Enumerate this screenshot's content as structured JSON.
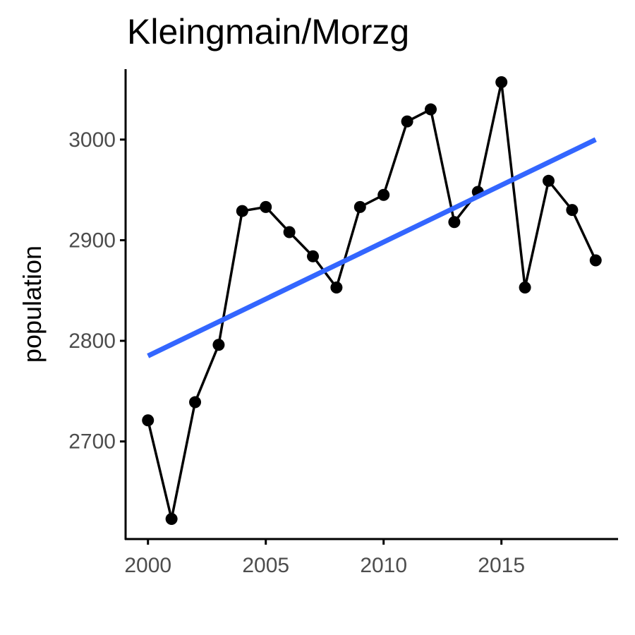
{
  "chart_data": {
    "type": "line",
    "title": "Kleingmain/Morzg",
    "xlabel": "",
    "ylabel": "population",
    "xlim": [
      1999.05,
      2019.95
    ],
    "ylim": [
      2603,
      3070
    ],
    "x_ticks": [
      2000,
      2005,
      2010,
      2015
    ],
    "y_ticks": [
      2700,
      2800,
      2900,
      3000
    ],
    "grid": false,
    "series": [
      {
        "x": [
          2000,
          2001,
          2002,
          2003,
          2004,
          2005,
          2006,
          2007,
          2008,
          2009,
          2010,
          2011,
          2012,
          2013,
          2014,
          2015,
          2016,
          2017,
          2018,
          2019
        ],
        "values": [
          2721,
          2623,
          2739,
          2796,
          2929,
          2933,
          2908,
          2884,
          2853,
          2933,
          2945,
          3018,
          3030,
          2918,
          2948,
          3057,
          2853,
          2959,
          2930,
          2880
        ]
      }
    ],
    "trend_line": {
      "x": [
        2000,
        2019
      ],
      "values": [
        2785,
        3000
      ]
    },
    "colors": {
      "series": "#000000",
      "trend": "#3366ff",
      "axis": "#000000",
      "tick_text": "#4d4d4d"
    }
  }
}
